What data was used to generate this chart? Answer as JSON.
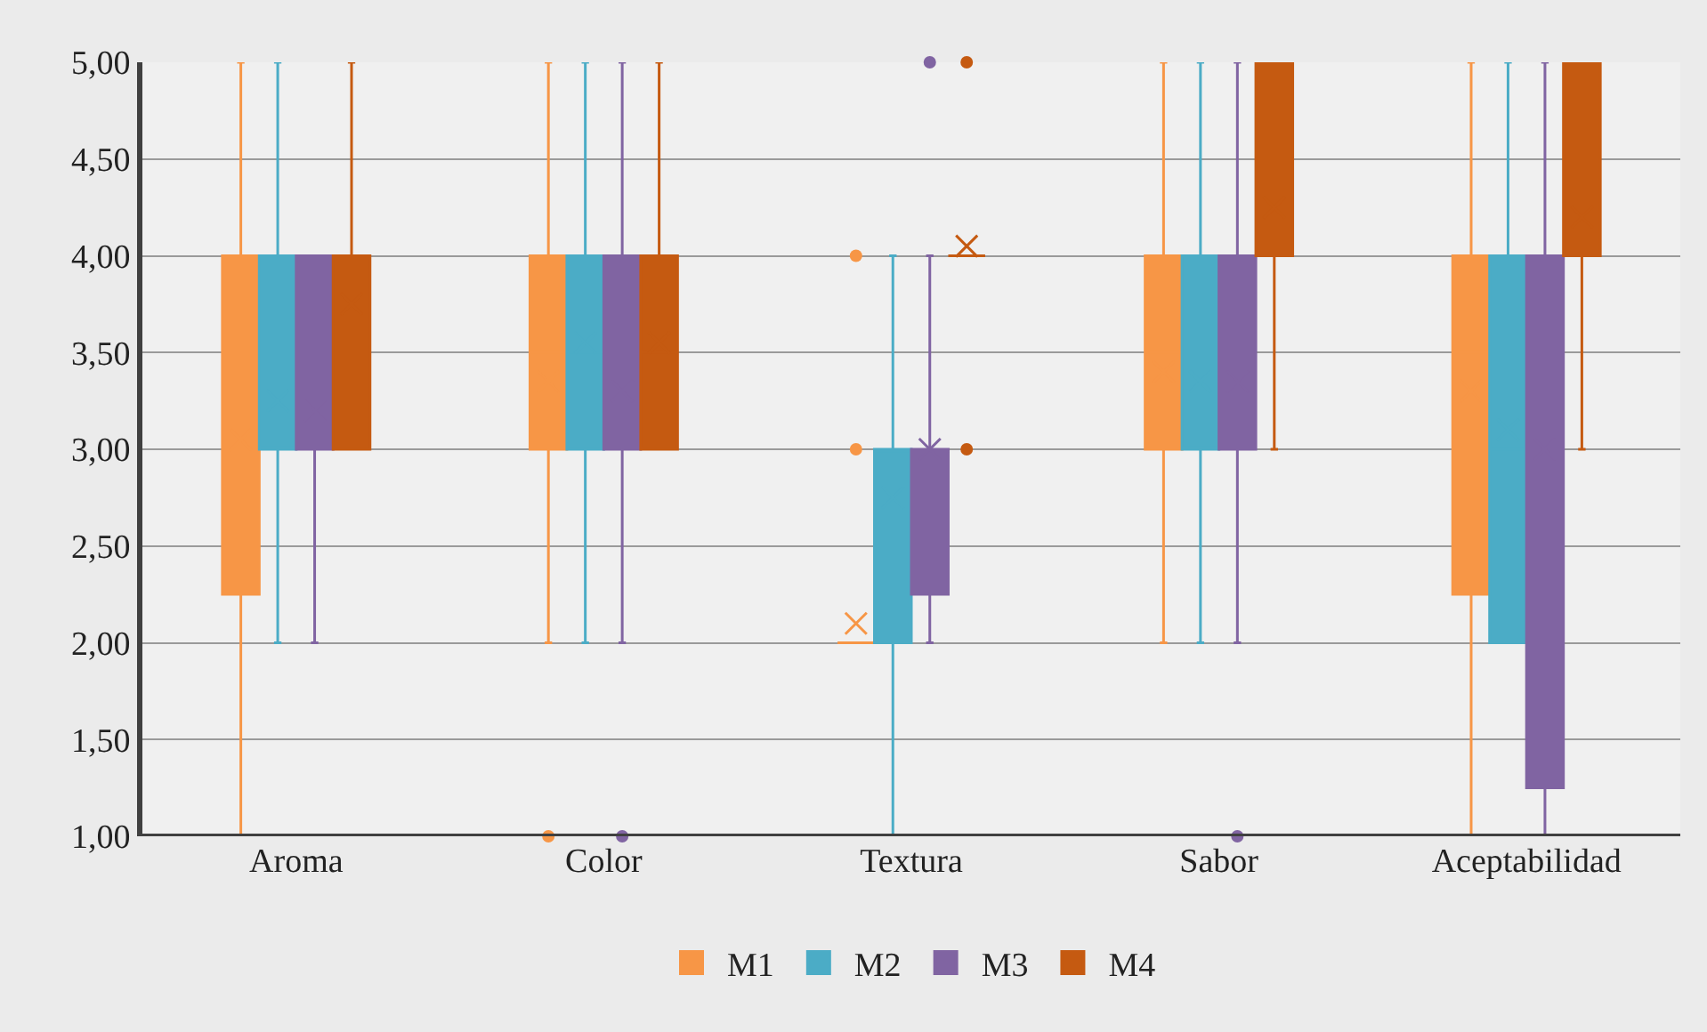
{
  "chart_data": {
    "type": "box",
    "categories": [
      "Aroma",
      "Color",
      "Textura",
      "Sabor",
      "Aceptabilidad"
    ],
    "ylim": [
      1,
      5
    ],
    "yticks": [
      {
        "value": 1,
        "label": "1,00"
      },
      {
        "value": 1.5,
        "label": "1,50"
      },
      {
        "value": 2,
        "label": "2,00"
      },
      {
        "value": 2.5,
        "label": "2,50"
      },
      {
        "value": 3,
        "label": "3,00"
      },
      {
        "value": 3.5,
        "label": "3,50"
      },
      {
        "value": 4,
        "label": "4,00"
      },
      {
        "value": 4.5,
        "label": "4,50"
      },
      {
        "value": 5,
        "label": "5,00"
      }
    ],
    "grid": "y",
    "legend": "bottom",
    "series": [
      {
        "name": "M1",
        "color": "#f79646",
        "boxes": [
          {
            "low": 1,
            "q1": 2.25,
            "median": 3,
            "q3": 4,
            "high": 5,
            "mean": 3.05
          },
          {
            "low": 2,
            "q1": 3,
            "median": 3.5,
            "q3": 4,
            "high": 5,
            "mean": 3.35,
            "outliers": [
              1
            ]
          },
          {
            "low": 2,
            "q1": 2,
            "median": 2,
            "q3": 2,
            "high": 2,
            "mean": 2.1,
            "outliers": [
              3,
              4
            ]
          },
          {
            "low": 2,
            "q1": 3,
            "median": 3.5,
            "q3": 4,
            "high": 5,
            "mean": 3.4
          },
          {
            "low": 1,
            "q1": 2.25,
            "median": 3.5,
            "q3": 4,
            "high": 5,
            "mean": 3.3
          }
        ]
      },
      {
        "name": "M2",
        "color": "#4bacc6",
        "boxes": [
          {
            "low": 2,
            "q1": 3,
            "median": 3,
            "q3": 4,
            "high": 5,
            "mean": 3.25
          },
          {
            "low": 2,
            "q1": 3,
            "median": 3.5,
            "q3": 4,
            "high": 5,
            "mean": 3.55
          },
          {
            "low": 1,
            "q1": 2,
            "median": 3,
            "q3": 3,
            "high": 4,
            "mean": 2.75
          },
          {
            "low": 2,
            "q1": 3,
            "median": 3,
            "q3": 4,
            "high": 5,
            "mean": 3.35
          },
          {
            "low": 2,
            "q1": 2,
            "median": 3,
            "q3": 4,
            "high": 5,
            "mean": 3.1
          }
        ]
      },
      {
        "name": "M3",
        "color": "#8064a2",
        "boxes": [
          {
            "low": 2,
            "q1": 3,
            "median": 3,
            "q3": 4,
            "high": 4,
            "mean": 3.2
          },
          {
            "low": 2,
            "q1": 3,
            "median": 3,
            "q3": 4,
            "high": 5,
            "mean": 3.3,
            "outliers": [
              1
            ]
          },
          {
            "low": 2,
            "q1": 2.25,
            "median": 3,
            "q3": 3,
            "high": 4,
            "mean": 3,
            "outliers": [
              5
            ]
          },
          {
            "low": 2,
            "q1": 3,
            "median": 3,
            "q3": 4,
            "high": 5,
            "mean": 3.35,
            "outliers": [
              1
            ]
          },
          {
            "low": 1,
            "q1": 1.25,
            "median": 3.5,
            "q3": 4,
            "high": 5,
            "mean": 3
          }
        ]
      },
      {
        "name": "M4",
        "color": "#c55a11",
        "boxes": [
          {
            "low": 3,
            "q1": 3,
            "median": 4,
            "q3": 4,
            "high": 5,
            "mean": 3.75
          },
          {
            "low": 3,
            "q1": 3,
            "median": 3.5,
            "q3": 4,
            "high": 5,
            "mean": 3.55
          },
          {
            "low": 4,
            "q1": 4,
            "median": 4,
            "q3": 4,
            "high": 4,
            "mean": 4.05,
            "outliers": [
              3,
              5
            ]
          },
          {
            "low": 3,
            "q1": 4,
            "median": 4,
            "q3": 5,
            "high": 5,
            "mean": 4.25
          },
          {
            "low": 3,
            "q1": 4,
            "median": 4,
            "q3": 5,
            "high": 5,
            "mean": 4.2
          }
        ]
      }
    ]
  }
}
